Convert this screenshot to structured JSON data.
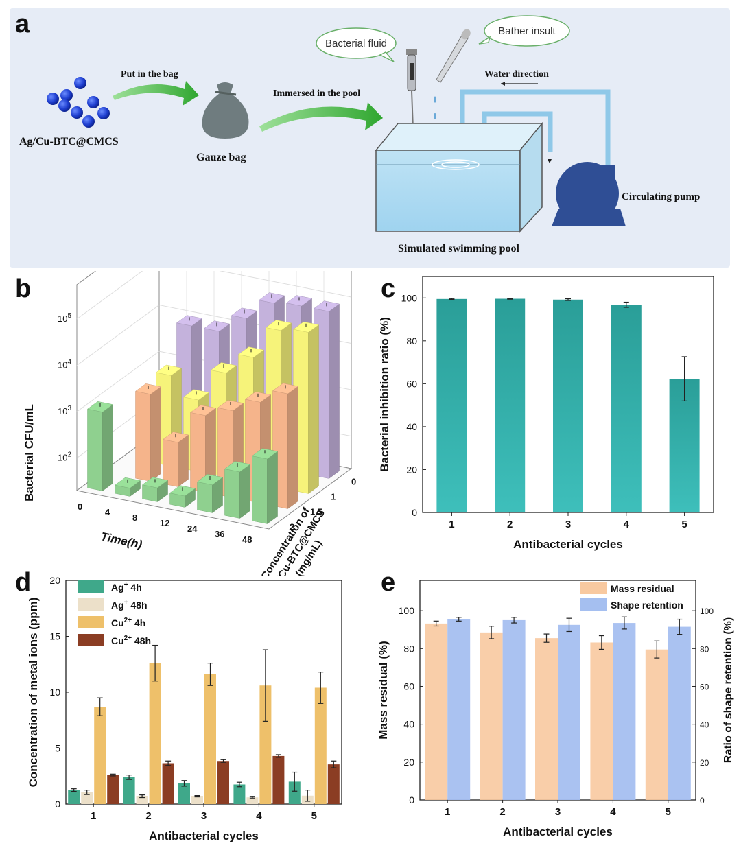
{
  "panel_a": {
    "letter": "a",
    "reagent": "Ag/Cu-BTC@CMCS",
    "step1": "Put in the bag",
    "bag": "Gauze bag",
    "step2": "Immersed in the pool",
    "bubble1": "Bacterial fluid",
    "bubble2": "Bather insult",
    "water": "Water direction",
    "pump": "Circulating pump",
    "pool": "Simulated swimming pool"
  },
  "panel_b": {
    "letter": "b",
    "ylabel": "Bacterial CFU/mL",
    "xlabel": "Time(h)",
    "zlabel_line1": "Concentration of",
    "zlabel_line2": "Ag/Cu-BTC@CMCS",
    "zlabel_line3": "(mg/mL)"
  },
  "panel_c": {
    "letter": "c"
  },
  "panel_d": {
    "letter": "d"
  },
  "panel_e": {
    "letter": "e"
  },
  "chart_data": [
    {
      "panel": "b",
      "type": "bar",
      "title": "",
      "xlabel": "Time(h)",
      "ylabel": "Bacterial CFU/mL",
      "zlabel": "Concentration of Ag/Cu-BTC@CMCS (mg/mL)",
      "categories": [
        "0",
        "4",
        "8",
        "12",
        "24",
        "36",
        "48"
      ],
      "y_ticks": [
        "10^2",
        "10^3",
        "10^4",
        "10^5"
      ],
      "scale": "log",
      "series": [
        {
          "name": "0",
          "color": "#c4b2dc",
          "values": [
            null,
            10000,
            10000,
            25000,
            70000,
            80000,
            80000
          ]
        },
        {
          "name": "1",
          "color": "#f6f37a",
          "values": [
            null,
            1800,
            700,
            3500,
            10000,
            50000,
            60000
          ]
        },
        {
          "name": "1.5",
          "color": "#f5b48b",
          "values": [
            null,
            1500,
            180,
            900,
            1500,
            3000,
            6000
          ]
        },
        {
          "name": "2",
          "color": "#8fd08f",
          "values": [
            1000,
            30,
            40,
            35,
            80,
            200,
            500
          ]
        }
      ]
    },
    {
      "panel": "c",
      "type": "bar",
      "title": "",
      "xlabel": "Antibacterial cycles",
      "ylabel": "Bacterial inhibition ratio (%)",
      "categories": [
        "1",
        "2",
        "3",
        "4",
        "5"
      ],
      "values": [
        99.5,
        99.6,
        99.2,
        96.8,
        62.3
      ],
      "errors": [
        0.2,
        0.2,
        0.4,
        1.2,
        10.3
      ],
      "ylim": [
        0,
        110
      ],
      "y_ticks": [
        0,
        20,
        40,
        60,
        80,
        100
      ],
      "color": "#2aa6a2"
    },
    {
      "panel": "d",
      "type": "bar",
      "title": "",
      "xlabel": "Antibacterial cycles",
      "ylabel": "Concentration of metal ions (ppm)",
      "categories": [
        "1",
        "2",
        "3",
        "4",
        "5"
      ],
      "ylim": [
        0,
        20
      ],
      "y_ticks": [
        0,
        5,
        10,
        15,
        20
      ],
      "legend_position": "top-left",
      "series": [
        {
          "name": "Ag",
          "sup": "+",
          "suffix": " 4h",
          "color": "#3fa88a",
          "values": [
            1.25,
            2.4,
            1.85,
            1.75,
            2.0
          ],
          "errors": [
            0.12,
            0.2,
            0.25,
            0.2,
            0.85
          ]
        },
        {
          "name": "Ag",
          "sup": "+",
          "suffix": " 48h",
          "color": "#ece0c9",
          "values": [
            1.05,
            0.7,
            0.7,
            0.6,
            0.75
          ],
          "errors": [
            0.2,
            0.12,
            0.06,
            0.06,
            0.5
          ]
        },
        {
          "name": "Cu",
          "sup": "2+",
          "suffix": " 4h",
          "color": "#eec06a",
          "values": [
            8.7,
            12.6,
            11.6,
            10.6,
            10.4
          ],
          "errors": [
            0.8,
            1.6,
            1.0,
            3.2,
            1.4
          ]
        },
        {
          "name": "Cu",
          "sup": "2+",
          "suffix": " 48h",
          "color": "#8b3d23",
          "values": [
            2.6,
            3.65,
            3.85,
            4.3,
            3.55
          ],
          "errors": [
            0.08,
            0.2,
            0.12,
            0.12,
            0.3
          ]
        }
      ]
    },
    {
      "panel": "e",
      "type": "bar",
      "title": "",
      "xlabel": "Antibacterial cycles",
      "ylabel": "Mass residual (%)",
      "ylabel_right": "Ratio of shape retention (%)",
      "categories": [
        "1",
        "2",
        "3",
        "4",
        "5"
      ],
      "ylim": [
        0,
        116
      ],
      "y_ticks": [
        0,
        20,
        40,
        60,
        80,
        100
      ],
      "legend_position": "top-right",
      "series": [
        {
          "name": "Mass residual",
          "axis": "left",
          "color": "#f8c9a0",
          "values": [
            93.2,
            88.5,
            85.5,
            83.2,
            79.5
          ],
          "errors": [
            1.3,
            3.3,
            2.2,
            3.6,
            4.5
          ]
        },
        {
          "name": "Shape retention",
          "axis": "right",
          "color": "#a5bff0",
          "values": [
            95.5,
            95.0,
            92.5,
            93.5,
            91.5
          ],
          "errors": [
            1.0,
            1.5,
            3.5,
            3.2,
            4.0
          ]
        }
      ]
    }
  ]
}
